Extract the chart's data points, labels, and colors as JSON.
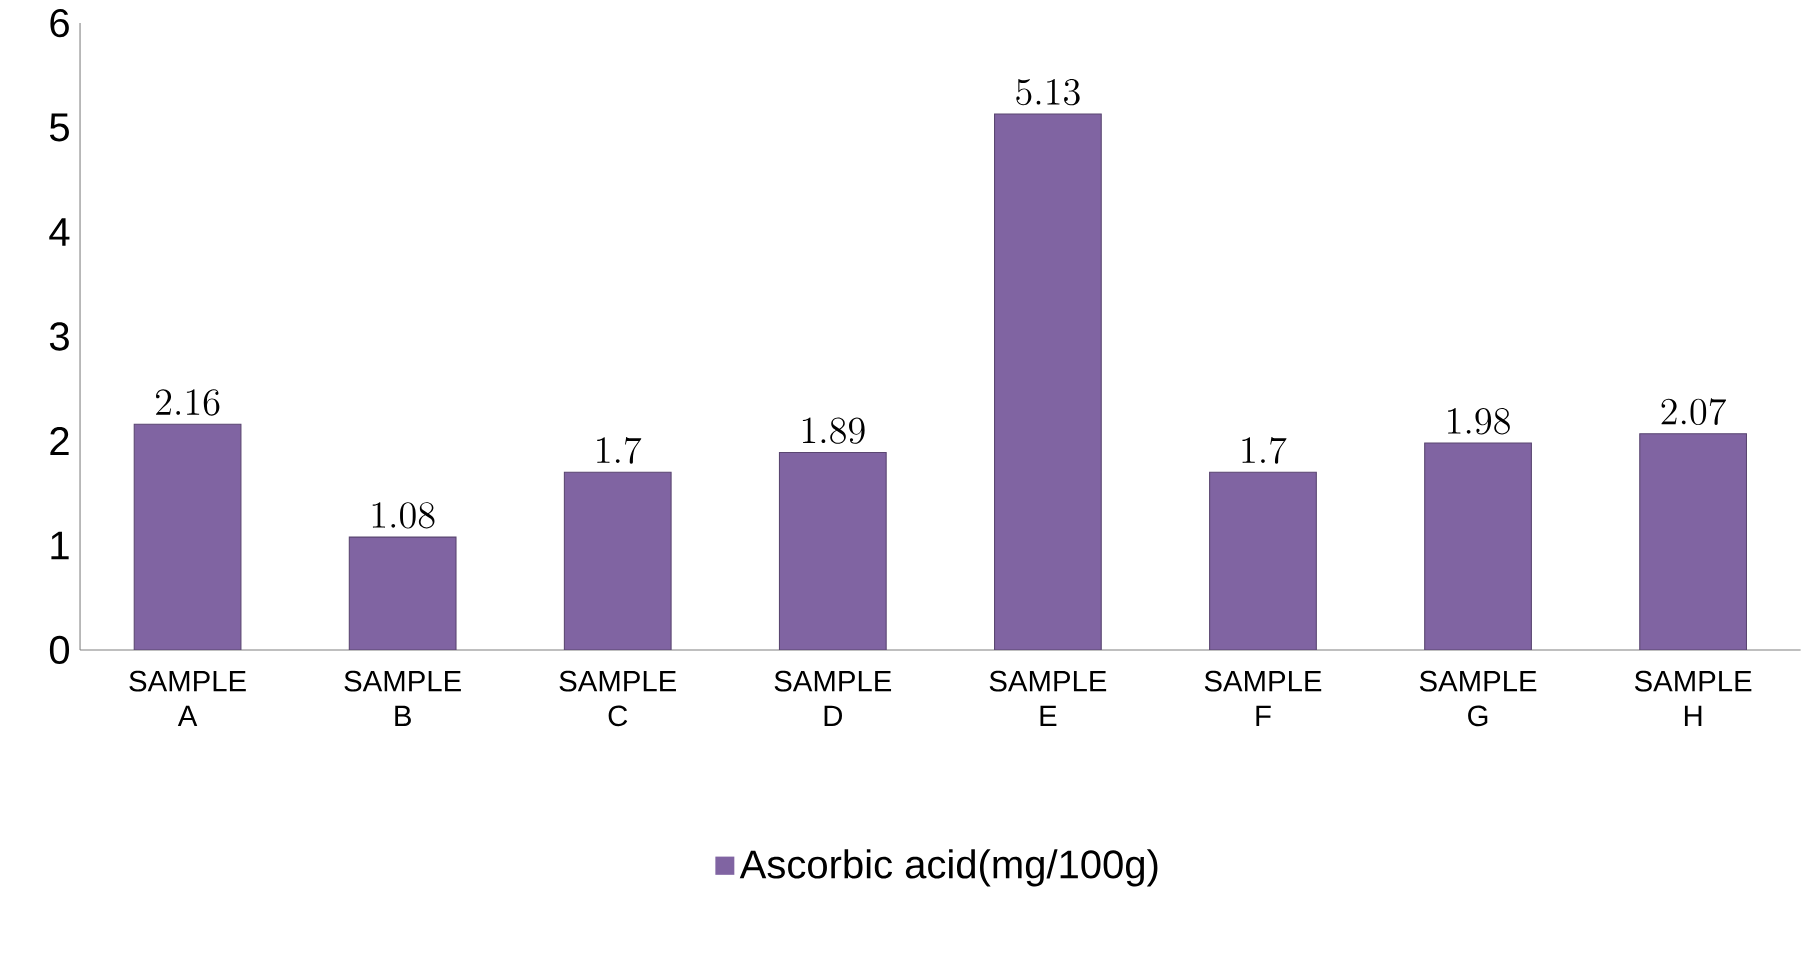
{
  "chart_data": {
    "type": "bar",
    "categories": [
      "SAMPLE A",
      "SAMPLE B",
      "SAMPLE C",
      "SAMPLE D",
      "SAMPLE E",
      "SAMPLE F",
      "SAMPLE G",
      "SAMPLE H"
    ],
    "series": [
      {
        "name": "Ascorbic acid(mg/100g)",
        "color": "#8064a2",
        "values": [
          2.16,
          1.08,
          1.7,
          1.89,
          5.13,
          1.7,
          1.98,
          2.07
        ]
      }
    ],
    "ylim": [
      0,
      6
    ],
    "yticks": [
      0,
      1,
      2,
      3,
      4,
      5,
      6
    ],
    "data_labels": true,
    "legend": "bottom",
    "grid": false
  }
}
